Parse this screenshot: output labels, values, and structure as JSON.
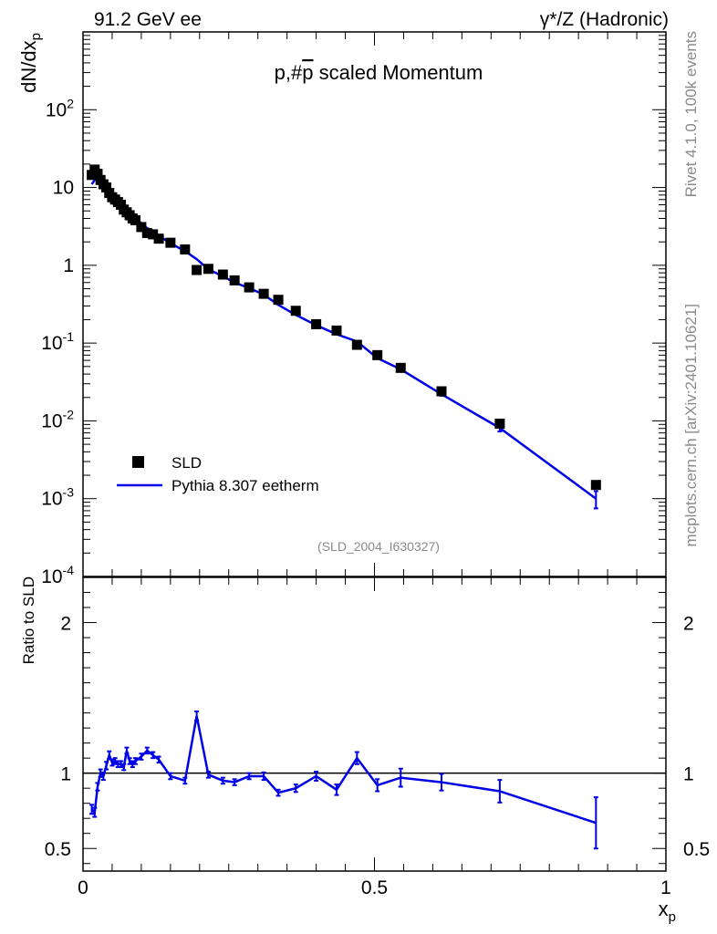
{
  "header": {
    "left": "91.2 GeV ee",
    "right": "γ*/Z (Hadronic)"
  },
  "side_labels": {
    "rivet": "Rivet 4.1.0,  100k events",
    "mcplots": "mcplots.cern.ch [arXiv:2401.10621]"
  },
  "analysis_tag": "(SLD_2004_I630327)",
  "colors": {
    "mc": "#0000e6",
    "data": "#000000",
    "reference_line": "#000000"
  },
  "chart_data": [
    {
      "type": "scatter",
      "panel": "main",
      "title": "p,#p̅ scaled Momentum",
      "title_pre": "p,#",
      "title_pbar": "p",
      "title_post": " scaled Momentum",
      "ylabel": "dN/dx",
      "ylabel_sub": "p",
      "yscale": "log",
      "ylim": [
        0.0001,
        1000
      ],
      "xlim": [
        0,
        1
      ],
      "y_tick_labels": [
        "10-4",
        "10-3",
        "10-2",
        "10-1",
        "1",
        "10",
        "102"
      ],
      "legend": {
        "placement": "bottom-left",
        "entries": [
          "SLD",
          "Pythia 8.307 eetherm"
        ]
      },
      "series": [
        {
          "name": "SLD",
          "x": [
            0.015,
            0.02,
            0.025,
            0.03,
            0.035,
            0.04,
            0.045,
            0.05,
            0.055,
            0.06,
            0.065,
            0.07,
            0.075,
            0.08,
            0.085,
            0.09,
            0.1,
            0.11,
            0.12,
            0.13,
            0.15,
            0.175,
            0.195,
            0.215,
            0.24,
            0.26,
            0.285,
            0.31,
            0.335,
            0.365,
            0.4,
            0.435,
            0.47,
            0.505,
            0.545,
            0.615,
            0.715,
            0.88
          ],
          "y": [
            14.5,
            17,
            15,
            12.5,
            11,
            10,
            8.5,
            7.5,
            7,
            6.5,
            6,
            5.2,
            4.8,
            4.4,
            4,
            3.8,
            3.1,
            2.6,
            2.5,
            2.2,
            1.95,
            1.6,
            0.87,
            0.9,
            0.76,
            0.64,
            0.52,
            0.43,
            0.36,
            0.26,
            0.175,
            0.145,
            0.095,
            0.07,
            0.048,
            0.024,
            0.0092,
            0.0015
          ]
        },
        {
          "name": "Pythia 8.307 eetherm",
          "x": [
            0.015,
            0.02,
            0.025,
            0.03,
            0.035,
            0.04,
            0.045,
            0.05,
            0.055,
            0.06,
            0.065,
            0.07,
            0.075,
            0.08,
            0.085,
            0.09,
            0.1,
            0.11,
            0.12,
            0.13,
            0.15,
            0.175,
            0.195,
            0.215,
            0.24,
            0.26,
            0.285,
            0.31,
            0.335,
            0.365,
            0.4,
            0.435,
            0.47,
            0.505,
            0.545,
            0.615,
            0.715,
            0.88
          ],
          "y": [
            11,
            12.5,
            13.5,
            12.2,
            10.8,
            10.5,
            9.8,
            8.2,
            7.5,
            6.9,
            6.3,
            5.4,
            5.6,
            4.8,
            4.2,
            3.9,
            3.5,
            3.0,
            2.8,
            2.4,
            1.92,
            1.52,
            1.2,
            0.89,
            0.72,
            0.6,
            0.51,
            0.42,
            0.31,
            0.23,
            0.17,
            0.13,
            0.105,
            0.064,
            0.046,
            0.022,
            0.0081,
            0.001
          ],
          "err": [
            0.4,
            0.4,
            0.4,
            0.3,
            0.3,
            0.3,
            0.3,
            0.2,
            0.2,
            0.2,
            0.2,
            0.15,
            0.15,
            0.12,
            0.1,
            0.1,
            0.08,
            0.07,
            0.06,
            0.05,
            0.04,
            0.03,
            0.03,
            0.02,
            0.02,
            0.015,
            0.012,
            0.01,
            0.008,
            0.006,
            0.004,
            0.004,
            0.003,
            0.002,
            0.0015,
            0.001,
            0.0008,
            0.00025
          ]
        }
      ]
    },
    {
      "type": "line",
      "panel": "ratio",
      "ylabel": "Ratio to SLD",
      "xlabel": "x",
      "xlabel_sub": "p",
      "ylim": [
        0.35,
        2.3
      ],
      "xlim": [
        0,
        1
      ],
      "y_tick_labels": [
        "0.5",
        "1",
        "2"
      ],
      "x_tick_labels": [
        "0",
        "0.5",
        "1"
      ],
      "reference": 1,
      "series": [
        {
          "name": "Pythia 8.307 eetherm / SLD",
          "x": [
            0.015,
            0.02,
            0.025,
            0.03,
            0.035,
            0.04,
            0.045,
            0.05,
            0.055,
            0.06,
            0.065,
            0.07,
            0.075,
            0.08,
            0.085,
            0.09,
            0.1,
            0.11,
            0.12,
            0.13,
            0.15,
            0.175,
            0.195,
            0.215,
            0.24,
            0.26,
            0.285,
            0.31,
            0.335,
            0.365,
            0.4,
            0.435,
            0.47,
            0.505,
            0.545,
            0.615,
            0.715,
            0.88
          ],
          "y": [
            0.76,
            0.74,
            0.91,
            1.0,
            0.98,
            1.05,
            1.12,
            1.07,
            1.08,
            1.06,
            1.06,
            1.04,
            1.15,
            1.08,
            1.06,
            1.08,
            1.11,
            1.15,
            1.12,
            1.09,
            0.98,
            0.95,
            1.38,
            0.99,
            0.95,
            0.94,
            0.98,
            0.98,
            0.87,
            0.9,
            0.98,
            0.89,
            1.1,
            0.92,
            0.97,
            0.94,
            0.88,
            0.67
          ],
          "err": [
            0.03,
            0.03,
            0.025,
            0.025,
            0.025,
            0.025,
            0.025,
            0.02,
            0.02,
            0.02,
            0.02,
            0.02,
            0.02,
            0.02,
            0.02,
            0.02,
            0.02,
            0.02,
            0.02,
            0.02,
            0.02,
            0.02,
            0.03,
            0.02,
            0.02,
            0.02,
            0.02,
            0.025,
            0.02,
            0.025,
            0.03,
            0.035,
            0.04,
            0.04,
            0.06,
            0.055,
            0.075,
            0.17
          ]
        }
      ]
    }
  ]
}
